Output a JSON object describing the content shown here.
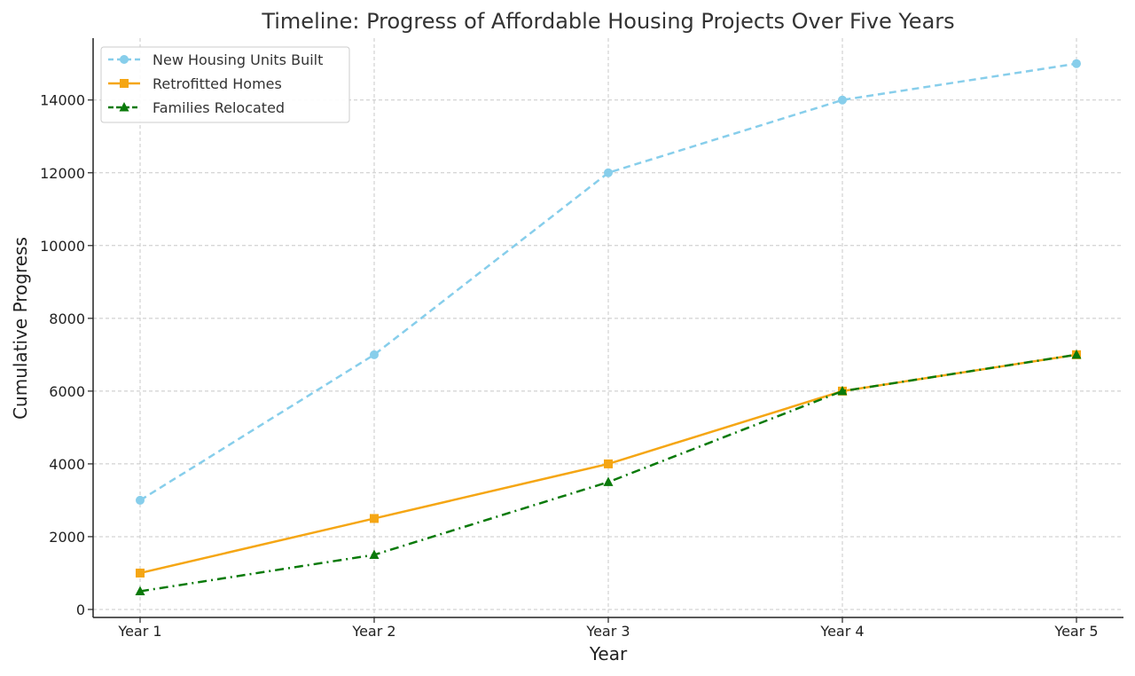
{
  "chart_data": {
    "type": "line",
    "title": "Timeline: Progress of Affordable Housing Projects Over Five Years",
    "xlabel": "Year",
    "ylabel": "Cumulative Progress",
    "categories": [
      "Year 1",
      "Year 2",
      "Year 3",
      "Year 4",
      "Year 5"
    ],
    "ylim": [
      -220,
      15700
    ],
    "yticks": [
      0,
      2000,
      4000,
      6000,
      8000,
      10000,
      12000,
      14000
    ],
    "grid": true,
    "legend_position": "top-left",
    "series": [
      {
        "name": "New Housing Units Built",
        "values": [
          3000,
          7000,
          12000,
          14000,
          15000
        ],
        "color": "#87ceeb",
        "line_style": "dashed",
        "marker": "circle"
      },
      {
        "name": "Retrofitted Homes",
        "values": [
          1000,
          2500,
          4000,
          6000,
          7000
        ],
        "color": "#f5a614",
        "line_style": "solid",
        "marker": "square"
      },
      {
        "name": "Families Relocated",
        "values": [
          500,
          1500,
          3500,
          6000,
          7000
        ],
        "color": "#0a7a0a",
        "line_style": "dashdot",
        "marker": "triangle"
      }
    ]
  }
}
